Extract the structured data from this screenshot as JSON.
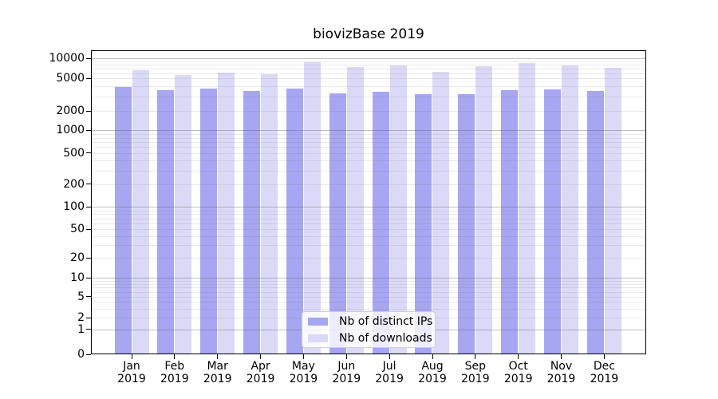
{
  "chart_data": {
    "type": "bar",
    "title": "biovizBase 2019",
    "categories": [
      "Jan",
      "Feb",
      "Mar",
      "Apr",
      "May",
      "Jun",
      "Jul",
      "Aug",
      "Sep",
      "Oct",
      "Nov",
      "Dec"
    ],
    "category_year": "2019",
    "series": [
      {
        "name": "Nb of distinct IPs",
        "color": "#a6a6f2",
        "values": [
          3900,
          3600,
          3800,
          3500,
          3800,
          3300,
          3450,
          3200,
          3200,
          3600,
          3700,
          3500
        ]
      },
      {
        "name": "Nb of downloads",
        "color": "#dadaf8",
        "values": [
          6600,
          5600,
          6100,
          5800,
          8700,
          7400,
          7800,
          6300,
          7700,
          8500,
          7800,
          7300
        ]
      }
    ],
    "y_axis": {
      "scale": "symlog",
      "tick_values": [
        0,
        1,
        2,
        5,
        10,
        20,
        50,
        100,
        200,
        500,
        1000,
        2000,
        5000,
        10000
      ],
      "tick_labels": [
        "0",
        "1",
        "2",
        "5",
        "10",
        "20",
        "50",
        "100",
        "200",
        "500",
        "1000",
        "2000",
        "5000",
        "10000"
      ],
      "scale_anchors": [
        [
          0,
          0.0
        ],
        [
          1,
          0.0827
        ],
        [
          2,
          0.1199
        ],
        [
          5,
          0.1898
        ],
        [
          10,
          0.2512
        ],
        [
          20,
          0.3168
        ],
        [
          50,
          0.4113
        ],
        [
          100,
          0.4848
        ],
        [
          200,
          0.5598
        ],
        [
          500,
          0.6622
        ],
        [
          1000,
          0.7367
        ],
        [
          2000,
          0.8005
        ],
        [
          5000,
          0.9073
        ],
        [
          10000,
          0.9738
        ]
      ]
    },
    "grid": {
      "major": "on",
      "minor": "on",
      "major_color": "#c0c0c0",
      "minor_color": "#e7e7e7"
    },
    "legend": {
      "position": "lower center"
    }
  }
}
